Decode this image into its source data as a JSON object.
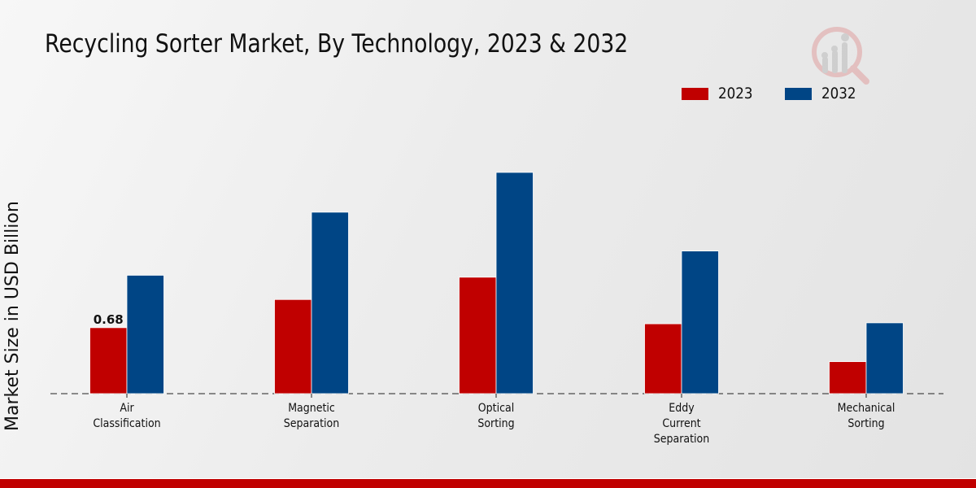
{
  "chart_data": {
    "type": "bar",
    "title": "Recycling Sorter Market, By Technology, 2023 & 2032",
    "xlabel": "",
    "ylabel": "Market Size in USD Billion",
    "categories": [
      [
        "Air",
        "Classification"
      ],
      [
        "Magnetic",
        "Separation"
      ],
      [
        "Optical",
        "Sorting"
      ],
      [
        "Eddy",
        "Current",
        "Separation"
      ],
      [
        "Mechanical",
        "Sorting"
      ]
    ],
    "series": [
      {
        "name": "2023",
        "color": "#c00000",
        "values": [
          0.68,
          0.97,
          1.2,
          0.72,
          0.33
        ]
      },
      {
        "name": "2032",
        "color": "#004585",
        "values": [
          1.22,
          1.87,
          2.28,
          1.47,
          0.73
        ]
      }
    ],
    "data_labels": [
      {
        "series": 0,
        "index": 0,
        "text": "0.68"
      }
    ],
    "ylim": [
      0,
      2.9
    ],
    "grid": false,
    "legend_position": "top-right"
  },
  "footer": {
    "accent_color": "#c00000"
  }
}
